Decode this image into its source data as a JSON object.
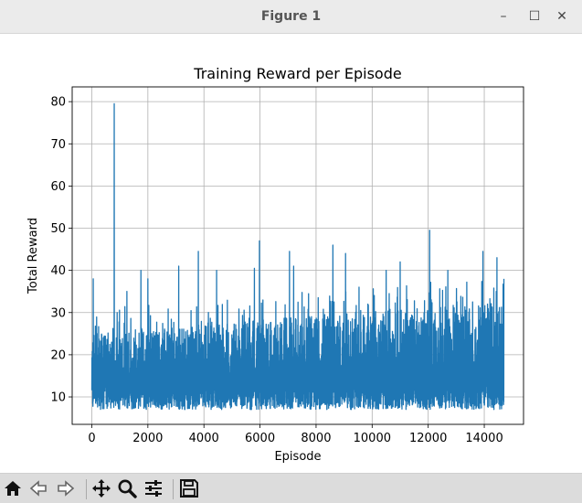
{
  "window": {
    "title": "Figure 1",
    "controls": {
      "minimize": "–",
      "maximize": "☐",
      "close": "✕"
    }
  },
  "toolbar": {
    "buttons": [
      "home-icon",
      "back-icon",
      "forward-icon",
      "pan-icon",
      "zoom-icon",
      "configure-subplots-icon",
      "save-icon"
    ]
  },
  "chart_data": {
    "type": "line",
    "title": "Training Reward per Episode",
    "xlabel": "Episode",
    "ylabel": "Total Reward",
    "xlim": [
      -700,
      15400
    ],
    "ylim": [
      3.5,
      83.5
    ],
    "xticks": [
      0,
      2000,
      4000,
      6000,
      8000,
      10000,
      12000,
      14000
    ],
    "xtick_labels": [
      "0",
      "2000",
      "4000",
      "6000",
      "8000",
      "10000",
      "12000",
      "14000"
    ],
    "yticks": [
      10,
      20,
      30,
      40,
      50,
      60,
      70,
      80
    ],
    "ytick_labels": [
      "10",
      "20",
      "30",
      "40",
      "50",
      "60",
      "70",
      "80"
    ],
    "grid": true,
    "line_color": "#1f77b4",
    "series": [
      {
        "episodes": 14700,
        "values_summary": "noisy per-episode total reward, mostly between about 7 and 30, with spikes up to about 45-50 and a single max spike",
        "spikes": [
          {
            "x": 50,
            "y": 38
          },
          {
            "x": 800,
            "y": 79.5
          },
          {
            "x": 1250,
            "y": 35
          },
          {
            "x": 1750,
            "y": 40
          },
          {
            "x": 2000,
            "y": 38
          },
          {
            "x": 3100,
            "y": 41
          },
          {
            "x": 3800,
            "y": 44.5
          },
          {
            "x": 4450,
            "y": 40
          },
          {
            "x": 5800,
            "y": 40.5
          },
          {
            "x": 5980,
            "y": 47
          },
          {
            "x": 7050,
            "y": 44.5
          },
          {
            "x": 7200,
            "y": 41
          },
          {
            "x": 8600,
            "y": 46
          },
          {
            "x": 9050,
            "y": 44
          },
          {
            "x": 10500,
            "y": 40
          },
          {
            "x": 11000,
            "y": 42
          },
          {
            "x": 12050,
            "y": 49.5
          },
          {
            "x": 12700,
            "y": 40
          },
          {
            "x": 13950,
            "y": 44.5
          },
          {
            "x": 14450,
            "y": 43
          },
          {
            "x": 14700,
            "y": 38
          }
        ],
        "typical_min": 7,
        "typical_max_start": 25,
        "typical_max_end": 33
      }
    ]
  }
}
